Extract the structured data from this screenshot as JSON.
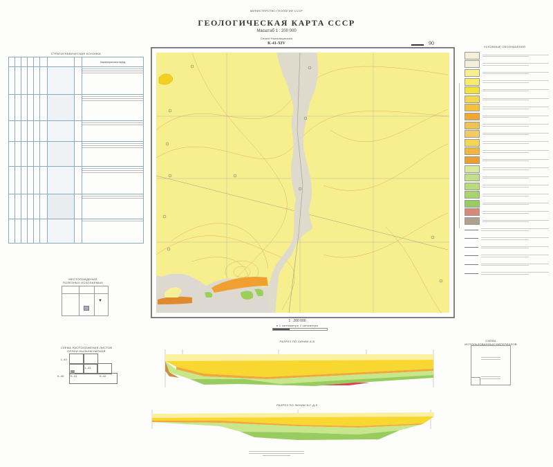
{
  "header": {
    "ministry": "МИНИСТЕРСТВО ГЕОЛОГИИ СССР",
    "title": "ГЕОЛОГИЧЕСКАЯ КАРТА СССР",
    "scale": "Масштаб 1 : 200 000",
    "series": "Серия Нылынкумская",
    "sheet": "K-41-XIV",
    "sheet_number": "90"
  },
  "strat_column": {
    "title": "СТРАТИГРАФИЧЕСКАЯ КОЛОНКА",
    "description_header": "Характеристика пород"
  },
  "minerals": {
    "title_line1": "МЕСТОРОЖДЕНИЯ",
    "title_line2": "ПОЛЕЗНЫХ ИСКОПАЕМЫХ"
  },
  "sheet_scheme": {
    "title_line1": "СХЕМА РАСПОЛОЖЕНИЯ ЛИСТОВ",
    "title_line2": "СЕРИИ НЫЛЫНКУМСКОЙ",
    "labels": [
      "L-40",
      "L-41",
      "K-40",
      "K-41",
      "K-42"
    ]
  },
  "legend": {
    "title": "УСЛОВНЫЕ ОБОЗНАЧЕНИЯ",
    "colors": [
      "#f4efd6",
      "#f3efd8",
      "#f8f08a",
      "#f6ec6a",
      "#f4e23a",
      "#f2d84a",
      "#f3c23a",
      "#f0a830",
      "#eec450",
      "#f2cc60",
      "#f5d650",
      "#eeb840",
      "#e9a030",
      "#d6ea9a",
      "#c2e08a",
      "#b8dc7a",
      "#a8d46a",
      "#98cc60",
      "#d88878",
      "#b0a090",
      "#ffffff",
      "#ffffff",
      "#ffffff",
      "#ffffff",
      "#ffffff",
      "#ffffff"
    ]
  },
  "map": {
    "colors": {
      "quaternary": "#f7ef8e",
      "alluvium": "#dcd8d0",
      "orange": "#f0a030",
      "green": "#9ccf5a",
      "contour": "#d49a5a"
    }
  },
  "scale_bar": {
    "ratio": "1 : 200 000",
    "note": "в 1 сантиметре 2 километра"
  },
  "sections": {
    "ab_title": "РАЗРЕЗ ПО ЛИНИИ А-Б",
    "vg_title": "РАЗРЕЗ ПО ЛИНИИ В-Г-Д-Е",
    "colors": {
      "top": "#faf0a0",
      "yellow": "#f8d830",
      "orange": "#f0a838",
      "lightgreen": "#c8e68a",
      "green": "#98cc60",
      "red": "#e04050"
    }
  },
  "materials": {
    "title_line1": "СХЕМА",
    "title_line2": "ИСПОЛЬЗОВАННЫХ МАТЕРИАЛОВ"
  }
}
